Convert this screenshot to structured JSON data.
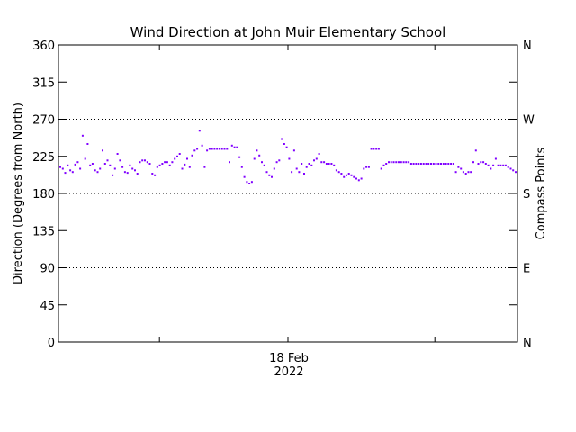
{
  "chart_data": {
    "type": "scatter",
    "title": "Wind Direction at John Muir Elementary School",
    "ylabel": "Direction (Degrees from North)",
    "ylabel_right": "Compass Points",
    "x_tick_date": "18 Feb",
    "x_tick_year": "2022",
    "ylim": [
      0,
      360
    ],
    "yticks": [
      "360",
      "315",
      "270",
      "225",
      "180",
      "135",
      "90",
      "45",
      "0"
    ],
    "compass_ticks": [
      {
        "label": "N",
        "value": 360
      },
      {
        "label": "W",
        "value": 270
      },
      {
        "label": "S",
        "value": 180
      },
      {
        "label": "E",
        "value": 90
      },
      {
        "label": "N",
        "value": 0
      }
    ],
    "dotted_gridlines": [
      270,
      180,
      90
    ],
    "point_color": "#8000ff",
    "series": [
      {
        "values": [
          212,
          210,
          205,
          214,
          208,
          206,
          215,
          218,
          210,
          250,
          222,
          240,
          214,
          216,
          208,
          206,
          210,
          232,
          216,
          220,
          214,
          202,
          210,
          228,
          220,
          212,
          206,
          205,
          214,
          210,
          208,
          204,
          218,
          220,
          220,
          218,
          216,
          204,
          202,
          212,
          214,
          216,
          218,
          218,
          214,
          218,
          222,
          225,
          228,
          210,
          215,
          222,
          212,
          226,
          232,
          234,
          256,
          238,
          212,
          232,
          234,
          234,
          234,
          234,
          234,
          234,
          234,
          234,
          218,
          238,
          236,
          236,
          224,
          212,
          200,
          194,
          192,
          194,
          222,
          232,
          226,
          218,
          214,
          206,
          202,
          200,
          210,
          218,
          220,
          246,
          240,
          236,
          222,
          206,
          232,
          210,
          206,
          216,
          204,
          212,
          216,
          214,
          220,
          222,
          228,
          218,
          218,
          216,
          216,
          216,
          214,
          208,
          206,
          204,
          200,
          202,
          204,
          202,
          200,
          198,
          196,
          198,
          210,
          212,
          212,
          234,
          234,
          234,
          234,
          210,
          214,
          216,
          218,
          218,
          218,
          218,
          218,
          218,
          218,
          218,
          218,
          216,
          216,
          216,
          216,
          216,
          216,
          216,
          216,
          216,
          216,
          216,
          216,
          216,
          216,
          216,
          216,
          216,
          216,
          206,
          212,
          210,
          206,
          204,
          206,
          206,
          218,
          232,
          216,
          218,
          218,
          216,
          214,
          210,
          214,
          222,
          214,
          214,
          214,
          214,
          212,
          210,
          208,
          206
        ]
      }
    ]
  }
}
